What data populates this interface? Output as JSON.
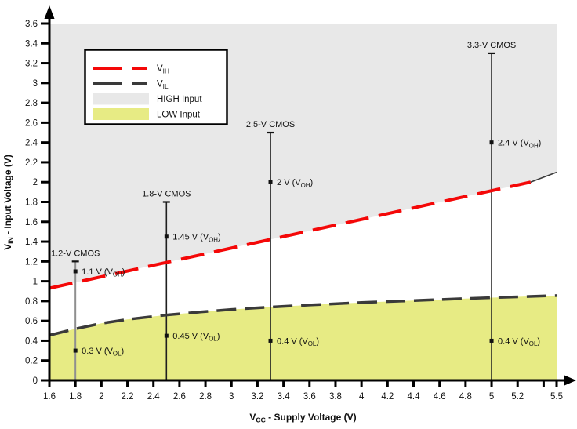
{
  "colors": {
    "vih_red": "#f40808",
    "vil_dark": "#3a3a3a",
    "high_fill": "#e8e8e8",
    "low_fill": "#e7eb84",
    "axis": "#000000",
    "text": "#111111",
    "std_line_gray": "#8f8f8f",
    "std_line_dark": "#1f1f1f",
    "marker": "#111111",
    "legend_bg": "#ffffff",
    "legend_border": "#000000"
  },
  "chart_data": {
    "type": "line",
    "title": "",
    "xlabel_parts": [
      "V",
      "CC",
      " - Supply Voltage (V)"
    ],
    "ylabel_parts": [
      "V",
      "IN",
      " - Input Voltage (V)"
    ],
    "xlim": [
      1.6,
      5.5
    ],
    "ylim": [
      0,
      3.6
    ],
    "grid": false,
    "legend_position": "top-left",
    "x_ticks": [
      {
        "v": 1.6,
        "t": "1.6"
      },
      {
        "v": 1.8,
        "t": "1.8"
      },
      {
        "v": 2,
        "t": "2"
      },
      {
        "v": 2.2,
        "t": "2.2"
      },
      {
        "v": 2.4,
        "t": "2.4"
      },
      {
        "v": 2.6,
        "t": "2.6"
      },
      {
        "v": 2.8,
        "t": "2.8"
      },
      {
        "v": 3,
        "t": "3"
      },
      {
        "v": 3.2,
        "t": "3.2"
      },
      {
        "v": 3.4,
        "t": "3.4"
      },
      {
        "v": 3.6,
        "t": "3.6"
      },
      {
        "v": 3.8,
        "t": "3.8"
      },
      {
        "v": 4,
        "t": "4"
      },
      {
        "v": 4.2,
        "t": "4.2"
      },
      {
        "v": 4.4,
        "t": "4.4"
      },
      {
        "v": 4.6,
        "t": "4.6"
      },
      {
        "v": 4.8,
        "t": "4.8"
      },
      {
        "v": 5,
        "t": "5"
      },
      {
        "v": 5.2,
        "t": "5.2"
      },
      {
        "v": 5.4,
        "t": ""
      },
      {
        "v": 5.5,
        "t": "5.5"
      }
    ],
    "y_ticks": [
      {
        "v": 0,
        "t": "0"
      },
      {
        "v": 0.2,
        "t": "0.2"
      },
      {
        "v": 0.4,
        "t": "0.4"
      },
      {
        "v": 0.6,
        "t": "0.6"
      },
      {
        "v": 0.8,
        "t": "0.8"
      },
      {
        "v": 1,
        "t": "1"
      },
      {
        "v": 1.2,
        "t": "1.2"
      },
      {
        "v": 1.4,
        "t": "1.4"
      },
      {
        "v": 1.6,
        "t": "1.6"
      },
      {
        "v": 1.8,
        "t": "1.8"
      },
      {
        "v": 2,
        "t": "2"
      },
      {
        "v": 2.2,
        "t": "2.2"
      },
      {
        "v": 2.4,
        "t": "2.4"
      },
      {
        "v": 2.6,
        "t": "2.6"
      },
      {
        "v": 2.8,
        "t": "2.8"
      },
      {
        "v": 3,
        "t": "3"
      },
      {
        "v": 3.2,
        "t": "3.2"
      },
      {
        "v": 3.4,
        "t": "3.4"
      },
      {
        "v": 3.6,
        "t": "3.6"
      }
    ],
    "series": [
      {
        "name": "VIH",
        "legend_parts": [
          "V",
          "IH"
        ],
        "color_key": "vih_red",
        "dash": [
          30,
          13
        ],
        "width": 4,
        "points": [
          [
            1.6,
            0.93
          ],
          [
            5.3,
            2.0
          ]
        ]
      },
      {
        "name": "VIL",
        "legend_parts": [
          "V",
          "IL"
        ],
        "color_key": "vil_dark",
        "dash": [
          25,
          11
        ],
        "width": 3.5,
        "points": [
          [
            1.6,
            0.455
          ],
          [
            1.8,
            0.52
          ],
          [
            2,
            0.575
          ],
          [
            2.2,
            0.615
          ],
          [
            2.5,
            0.66
          ],
          [
            2.8,
            0.695
          ],
          [
            3,
            0.715
          ],
          [
            3.3,
            0.74
          ],
          [
            3.6,
            0.76
          ],
          [
            4,
            0.785
          ],
          [
            4.4,
            0.805
          ],
          [
            4.8,
            0.825
          ],
          [
            5,
            0.835
          ],
          [
            5.5,
            0.855
          ]
        ]
      }
    ],
    "vih_boundary_extension": [
      [
        5.3,
        2.0
      ],
      [
        5.5,
        2.1
      ]
    ],
    "regions": [
      {
        "name": "HIGH Input",
        "color_key": "high_fill",
        "bound": "above_vih"
      },
      {
        "name": "LOW Input",
        "color_key": "low_fill",
        "bound": "below_vil"
      }
    ],
    "standards": [
      {
        "title": "1.2-V CMOS",
        "vcc": 1.8,
        "line_top": 1.2,
        "line_color_key": "std_line_gray",
        "voh_v": 1.1,
        "voh_parts": [
          "1.1 V (V",
          "OH",
          ")"
        ],
        "vol_v": 0.3,
        "vol_parts": [
          "0.3 V (V",
          "OL",
          ")"
        ]
      },
      {
        "title": "1.8-V CMOS",
        "vcc": 2.5,
        "line_top": 1.8,
        "line_color_key": "std_line_dark",
        "voh_v": 1.45,
        "voh_parts": [
          "1.45 V (V",
          "OH",
          ")"
        ],
        "vol_v": 0.45,
        "vol_parts": [
          "0.45 V (V",
          "OL",
          ")"
        ]
      },
      {
        "title": "2.5-V CMOS",
        "vcc": 3.3,
        "line_top": 2.5,
        "line_color_key": "std_line_dark",
        "voh_v": 2,
        "voh_parts": [
          "2 V (V",
          "OH",
          ")"
        ],
        "vol_v": 0.4,
        "vol_parts": [
          "0.4 V (V",
          "OL",
          ")"
        ]
      },
      {
        "title": "3.3-V CMOS",
        "vcc": 5,
        "line_top": 3.3,
        "line_color_key": "std_line_dark",
        "voh_v": 2.4,
        "voh_parts": [
          "2.4 V (V",
          "OH",
          ")"
        ],
        "vol_v": 0.4,
        "vol_parts": [
          "0.4 V (V",
          "OL",
          ")"
        ]
      }
    ],
    "legend": {
      "items": [
        {
          "swatch": "dash",
          "color_key": "vih_red",
          "label_parts": [
            "V",
            "IH"
          ]
        },
        {
          "swatch": "dash",
          "color_key": "vil_dark",
          "label_parts": [
            "V",
            "IL"
          ]
        },
        {
          "swatch": "fill",
          "color_key": "high_fill",
          "label_parts": [
            "HIGH Input"
          ]
        },
        {
          "swatch": "fill",
          "color_key": "low_fill",
          "label_parts": [
            "LOW Input"
          ]
        }
      ]
    }
  }
}
